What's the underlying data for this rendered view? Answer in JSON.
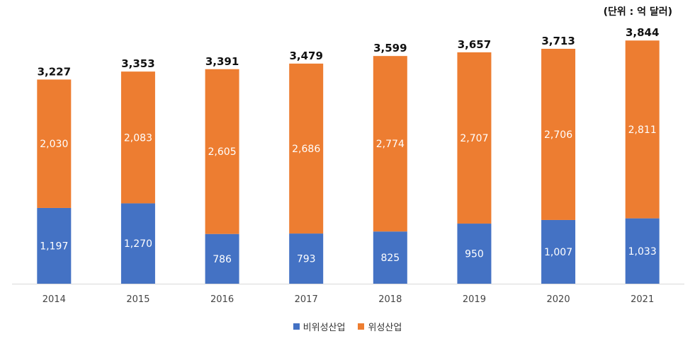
{
  "unit_label": "(단위 : 억 달러)",
  "colors": {
    "non_satellite": "#4472C4",
    "satellite": "#ED7D31",
    "axis": "#D9D9D9",
    "text_dark": "#111111",
    "text_axis": "#444444",
    "text_inside": "#ffffff"
  },
  "legend": [
    {
      "label": "비위성산업",
      "color": "#4472C4"
    },
    {
      "label": "위성산업",
      "color": "#ED7D31"
    }
  ],
  "chart_data": {
    "type": "bar",
    "stacked": true,
    "categories": [
      "2014",
      "2015",
      "2016",
      "2017",
      "2018",
      "2019",
      "2020",
      "2021"
    ],
    "series": [
      {
        "name": "비위성산업",
        "values": [
          1197,
          1270,
          786,
          793,
          825,
          950,
          1007,
          1033
        ]
      },
      {
        "name": "위성산업",
        "values": [
          2030,
          2083,
          2605,
          2686,
          2774,
          2707,
          2706,
          2811
        ]
      }
    ],
    "value_labels": [
      [
        "1,197",
        "1,270",
        "786",
        "793",
        "825",
        "950",
        "1,007",
        "1,033"
      ],
      [
        "2,030",
        "2,083",
        "2,605",
        "2,686",
        "2,774",
        "2,707",
        "2,706",
        "2,811"
      ]
    ],
    "totals": [
      3227,
      3353,
      3391,
      3479,
      3599,
      3657,
      3713,
      3844
    ],
    "total_labels": [
      "3,227",
      "3,353",
      "3,391",
      "3,479",
      "3,599",
      "3,657",
      "3,713",
      "3,844"
    ],
    "ylim": [
      0,
      4350
    ],
    "grid": false,
    "legend_position": "bottom"
  }
}
